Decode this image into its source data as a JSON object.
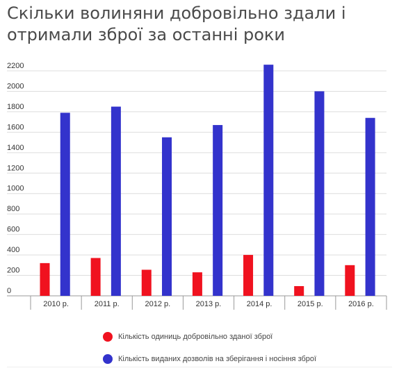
{
  "header": {
    "title_line1": "Скільки волиняни добровільно здали і",
    "title_line2": "отримали зброї за останні роки"
  },
  "colors": {
    "series_red": "#f0121f",
    "series_blue": "#3333cc",
    "grid": "#dddddd",
    "axis": "#999999"
  },
  "chart_data": {
    "type": "bar",
    "categories": [
      "2010 р.",
      "2011 р.",
      "2012 р.",
      "2013 р.",
      "2014 р.",
      "2015 р.",
      "2016 р."
    ],
    "series": [
      {
        "name": "Кількість одиниць добровільно зданої зброї",
        "values": [
          320,
          370,
          255,
          230,
          400,
          95,
          300
        ]
      },
      {
        "name": "Кількість виданих дозволів на зберігання і носіння зброї",
        "values": [
          1790,
          1850,
          1550,
          1670,
          2260,
          2000,
          1740
        ]
      }
    ],
    "yticks": [
      0,
      200,
      400,
      600,
      800,
      1000,
      1200,
      1400,
      1600,
      1800,
      2000,
      2200
    ],
    "ylim": [
      0,
      2200
    ],
    "grid": true,
    "legend_position": "bottom"
  }
}
